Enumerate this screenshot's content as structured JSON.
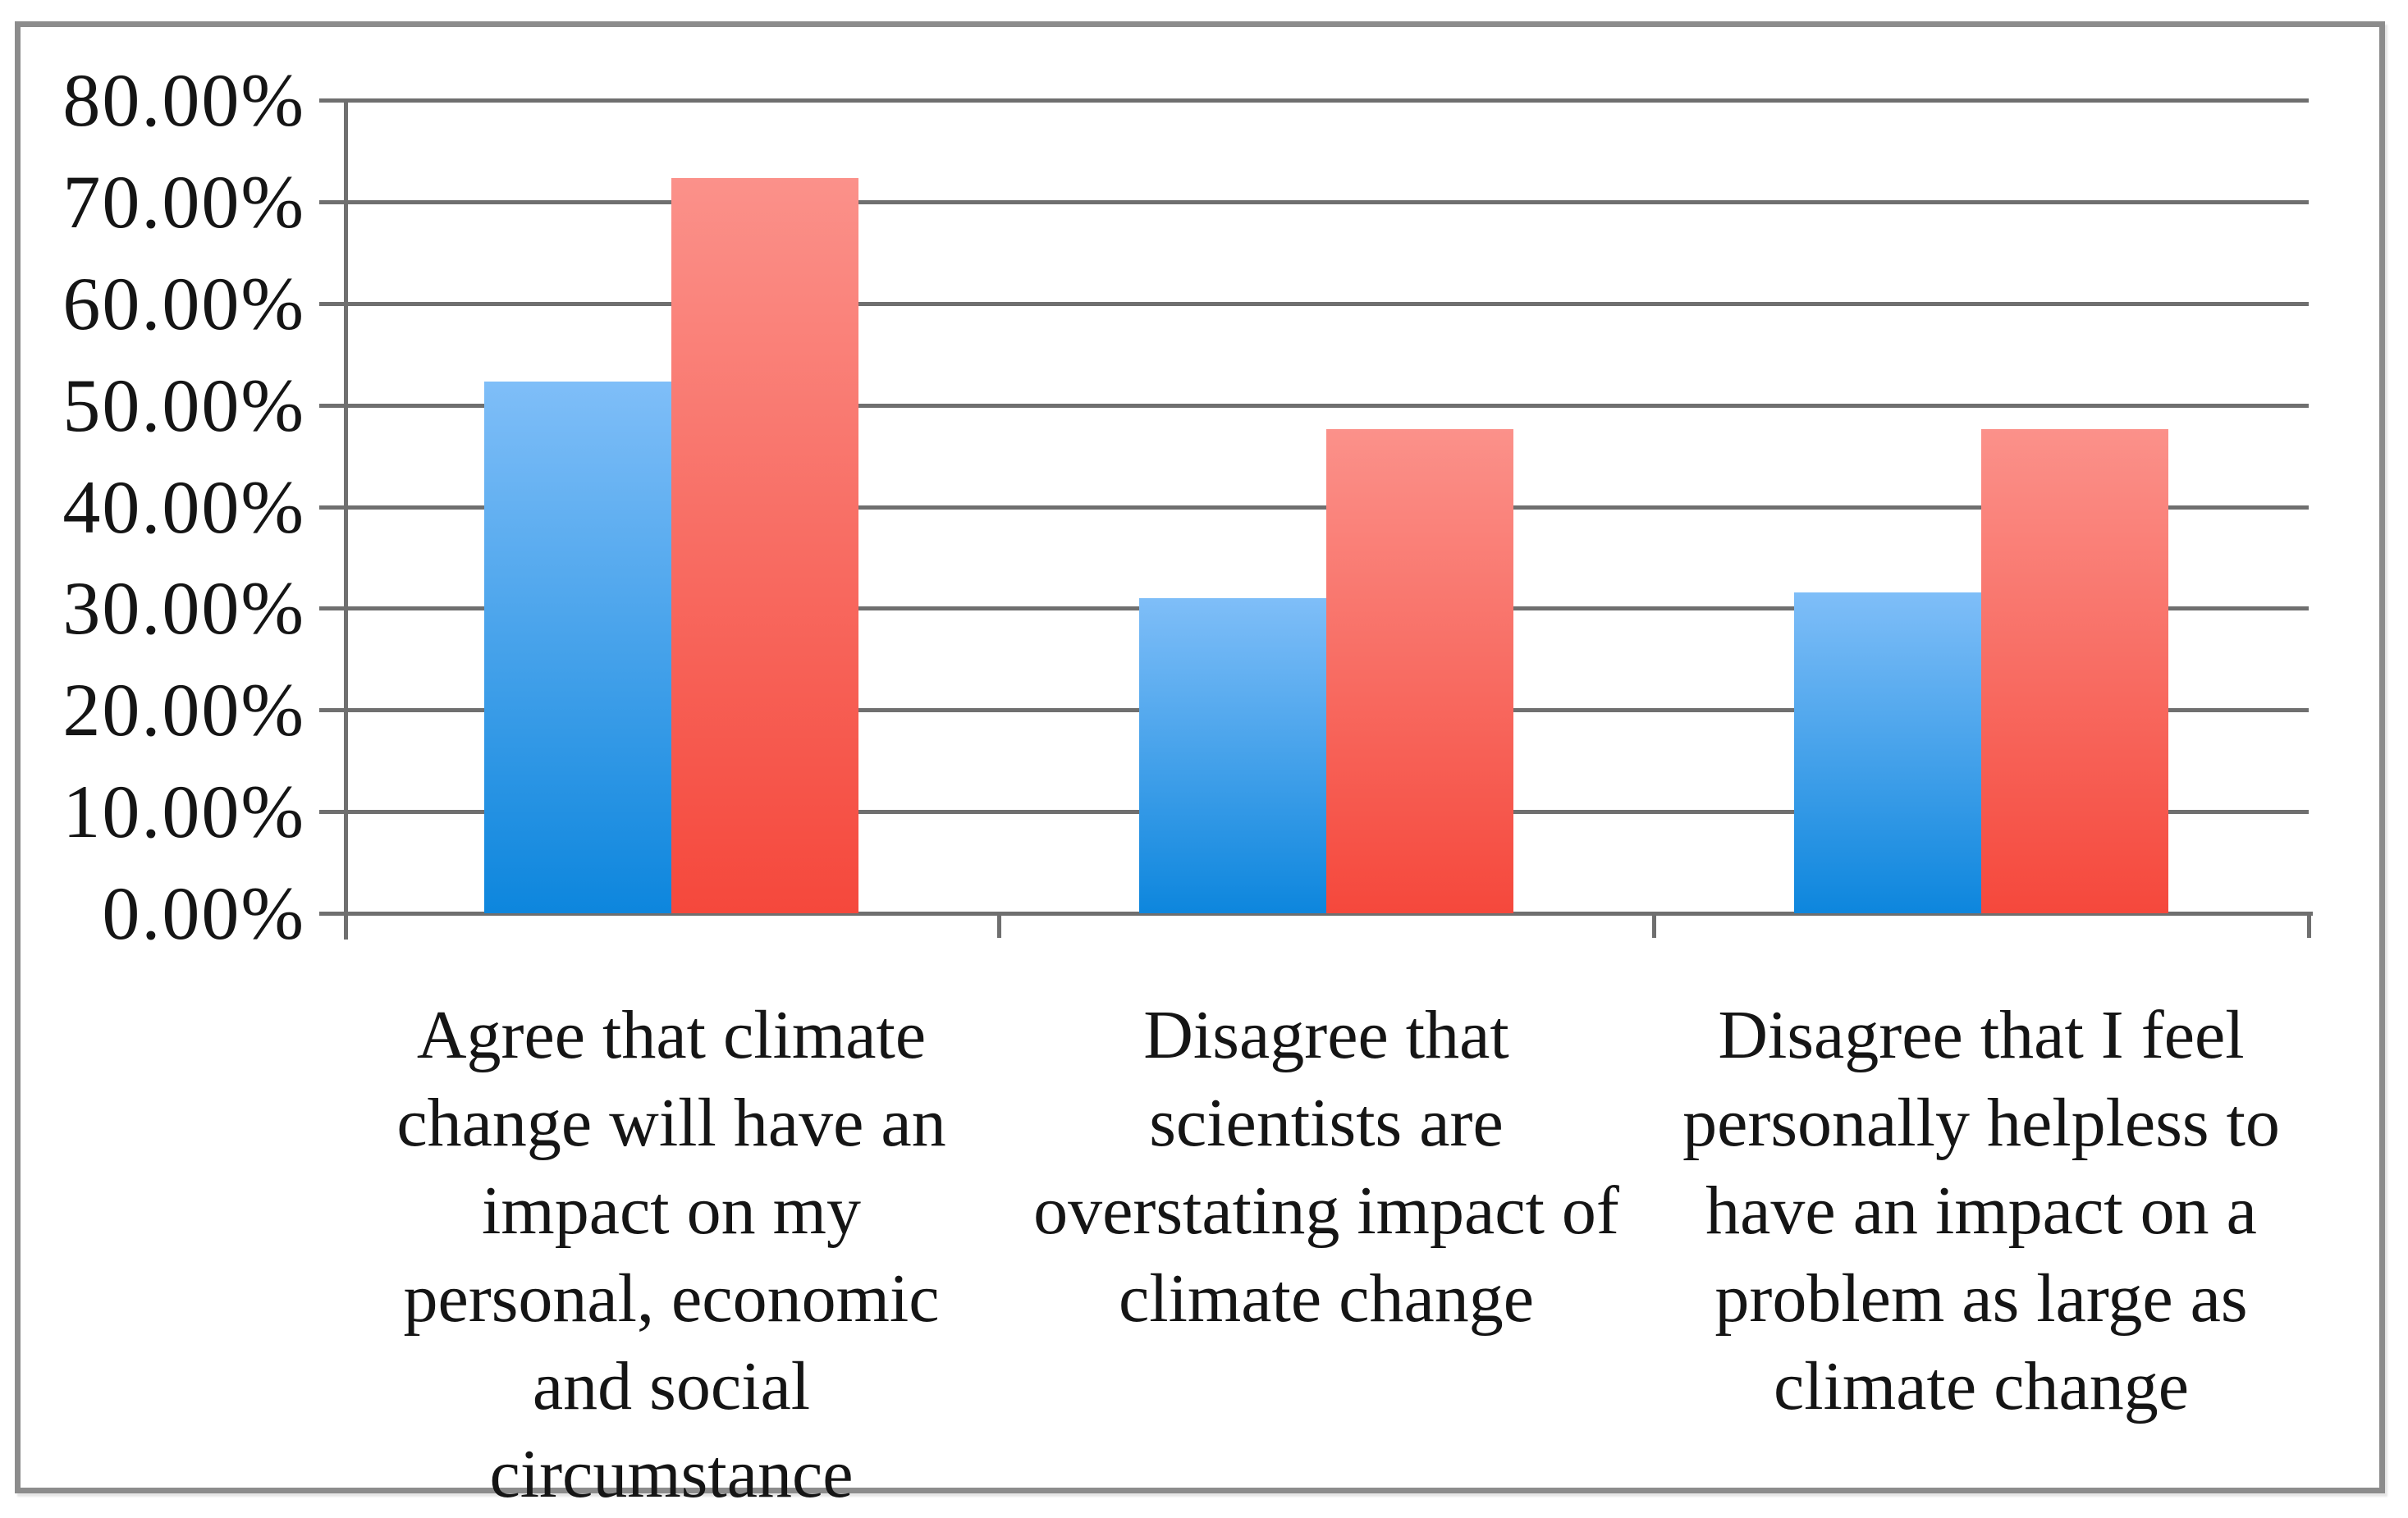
{
  "chart_data": {
    "type": "bar",
    "title": "",
    "grid": true,
    "legend": "none",
    "y_axis": {
      "min": 0,
      "max": 80,
      "tick_step": 10,
      "tick_labels": [
        "0.00%",
        "10.00%",
        "20.00%",
        "30.00%",
        "40.00%",
        "50.00%",
        "60.00%",
        "70.00%",
        "80.00%"
      ]
    },
    "categories": [
      {
        "label": "Agree that climate change will have an impact on my personal, economic and social circumstance",
        "lines": [
          "Agree that climate",
          "change will have an",
          "impact on my",
          "personal, economic",
          "and social",
          "circumstance"
        ]
      },
      {
        "label": "Disagree that scientists are overstating impact of climate change",
        "lines": [
          "Disagree that",
          "scientists are",
          "overstating impact of",
          "climate change"
        ]
      },
      {
        "label": "Disagree that I feel personally helpless to have an impact on a problem as large as climate change",
        "lines": [
          "Disagree that I feel",
          "personally helpless to",
          "have an impact on a",
          "problem as large as",
          "climate change"
        ]
      }
    ],
    "series": [
      {
        "name": "blue",
        "values": [
          52.3,
          31.0,
          31.6
        ],
        "color_top": "#7fbef8",
        "color_bottom": "#0d86dd"
      },
      {
        "name": "red",
        "values": [
          72.3,
          47.6,
          47.6
        ],
        "color_top": "#fb918a",
        "color_bottom": "#f5483c"
      }
    ],
    "colors": {
      "gridline": "#6f6f6f",
      "axis": "#6f6f6f",
      "frame_border": "#8c8c8c",
      "text": "#151515"
    }
  }
}
